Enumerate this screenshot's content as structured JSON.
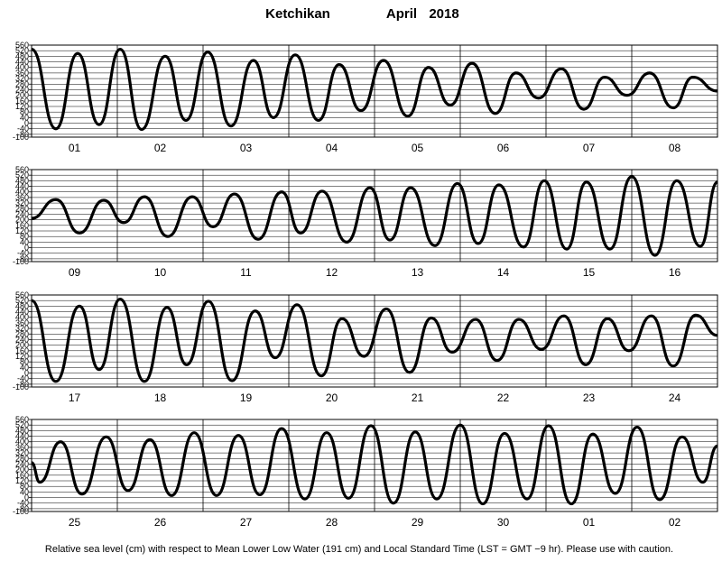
{
  "title": "Ketchikan",
  "month": "April",
  "year": "2018",
  "footnote": "Relative sea level (cm) with respect to Mean Lower Low Water (191 cm) and Local Standard Time (LST = GMT −9 hr). Please use with caution.",
  "chart_data": [
    {
      "type": "line",
      "categories": [
        "01",
        "02",
        "03",
        "04",
        "05",
        "06",
        "07",
        "08"
      ],
      "x": [
        0,
        6.8,
        12.9,
        18.9,
        24.8,
        30.8,
        37.4,
        43.2,
        49.3,
        55.8,
        62.1,
        67.7,
        73.8,
        80.3,
        86.1,
        92.2,
        98.5,
        105.3,
        111.1,
        117.2,
        123.3,
        129.8,
        135.6,
        141.9,
        148.3,
        154.6,
        160.4,
        166.7,
        173.0,
        179.6,
        185.1,
        192
      ],
      "values": [
        530,
        -40,
        500,
        -10,
        530,
        -45,
        480,
        20,
        510,
        -20,
        450,
        40,
        490,
        20,
        420,
        90,
        450,
        50,
        400,
        130,
        430,
        70,
        360,
        180,
        390,
        100,
        330,
        200,
        360,
        110,
        330,
        230
      ],
      "color": "#000000",
      "xlim": [
        0,
        192
      ],
      "ylim": [
        -100,
        560
      ],
      "yticks": [
        -100,
        -80,
        -40,
        0,
        40,
        80,
        120,
        160,
        200,
        240,
        280,
        320,
        360,
        400,
        440,
        480,
        520,
        560
      ],
      "grid": true
    },
    {
      "type": "line",
      "categories": [
        "09",
        "10",
        "11",
        "12",
        "13",
        "14",
        "15",
        "16"
      ],
      "x": [
        0,
        6.8,
        13.4,
        20.2,
        25.8,
        31.6,
        38.1,
        45.0,
        50.8,
        56.8,
        63.4,
        70.0,
        75.3,
        81.3,
        88.2,
        94.7,
        100.3,
        106.1,
        112.9,
        119.2,
        125.0,
        130.8,
        137.7,
        143.5,
        149.8,
        155.3,
        161.9,
        168.0,
        174.5,
        180.6,
        187.2,
        192
      ],
      "values": [
        210,
        345,
        105,
        340,
        180,
        365,
        80,
        365,
        150,
        385,
        60,
        400,
        105,
        405,
        40,
        430,
        55,
        430,
        15,
        460,
        30,
        450,
        5,
        480,
        -10,
        470,
        -10,
        510,
        -55,
        480,
        10,
        470
      ],
      "color": "#000000",
      "xlim": [
        0,
        192
      ],
      "ylim": [
        -100,
        560
      ],
      "yticks": [
        -100,
        -80,
        -40,
        0,
        40,
        80,
        120,
        160,
        200,
        240,
        280,
        320,
        360,
        400,
        440,
        480,
        520,
        560
      ],
      "grid": true
    },
    {
      "type": "line",
      "categories": [
        "17",
        "18",
        "19",
        "20",
        "21",
        "22",
        "23",
        "24"
      ],
      "x": [
        0,
        6.8,
        13.4,
        18.9,
        24.8,
        31.6,
        37.9,
        43.4,
        49.5,
        56.1,
        62.6,
        68.2,
        74.3,
        81.1,
        86.9,
        93.0,
        99.3,
        105.8,
        111.9,
        117.7,
        124.3,
        130.3,
        136.4,
        142.7,
        149.0,
        155.1,
        161.2,
        167.2,
        173.5,
        179.6,
        185.9,
        192
      ],
      "values": [
        520,
        -60,
        480,
        25,
        530,
        -60,
        470,
        60,
        515,
        -55,
        445,
        110,
        490,
        -20,
        390,
        120,
        460,
        5,
        395,
        150,
        385,
        90,
        385,
        170,
        410,
        60,
        390,
        160,
        410,
        50,
        415,
        270
      ],
      "color": "#000000",
      "xlim": [
        0,
        192
      ],
      "ylim": [
        -100,
        560
      ],
      "yticks": [
        -100,
        -80,
        -40,
        0,
        40,
        80,
        120,
        160,
        200,
        240,
        280,
        320,
        360,
        400,
        440,
        480,
        520,
        560
      ],
      "grid": true
    },
    {
      "type": "line",
      "categories": [
        "25",
        "26",
        "27",
        "28",
        "29",
        "30",
        "01",
        "02"
      ],
      "x": [
        0,
        2.3,
        8.1,
        14.1,
        20.9,
        27.0,
        33.1,
        39.2,
        45.5,
        51.8,
        57.9,
        63.9,
        70.0,
        76.5,
        82.6,
        88.7,
        95.0,
        101.3,
        107.4,
        113.4,
        120.0,
        126.3,
        132.4,
        138.7,
        144.7,
        151.1,
        157.1,
        163.4,
        169.5,
        175.8,
        182.1,
        187.9,
        192
      ],
      "values": [
        250,
        110,
        400,
        25,
        435,
        50,
        415,
        15,
        465,
        15,
        445,
        20,
        495,
        -10,
        465,
        -5,
        515,
        -40,
        470,
        -10,
        520,
        -45,
        460,
        -10,
        515,
        -45,
        455,
        30,
        505,
        -15,
        435,
        110,
        370
      ],
      "color": "#000000",
      "xlim": [
        0,
        192
      ],
      "ylim": [
        -100,
        560
      ],
      "yticks": [
        -100,
        -80,
        -40,
        0,
        40,
        80,
        120,
        160,
        200,
        240,
        280,
        320,
        360,
        400,
        440,
        480,
        520,
        560
      ],
      "grid": true
    }
  ]
}
